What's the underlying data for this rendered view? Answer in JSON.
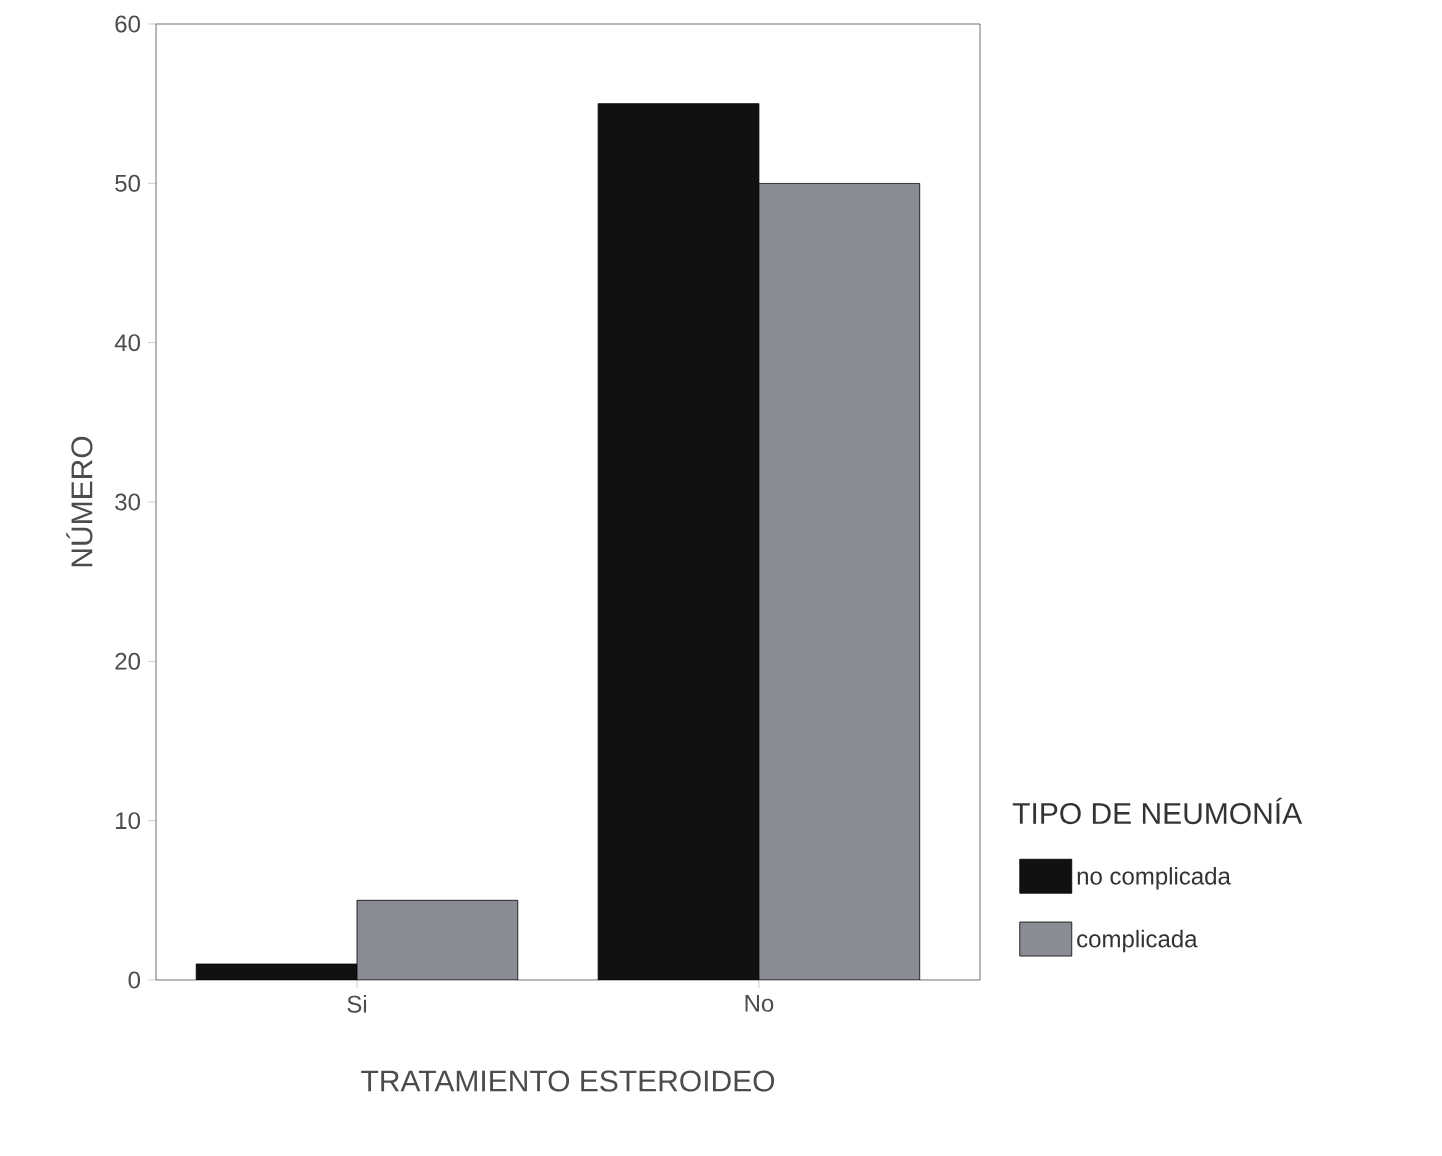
{
  "chart_data": {
    "type": "bar",
    "xlabel": "TRATAMIENTO ESTEROIDEO",
    "ylabel": "NÚMERO",
    "legend_title": "TIPO DE NEUMONÍA",
    "categories": [
      "Si",
      "No"
    ],
    "series": [
      {
        "name": "no complicada",
        "color": "#111111",
        "values": [
          1,
          55
        ]
      },
      {
        "name": "complicada",
        "color": "#8a8c94",
        "values": [
          5,
          50
        ]
      }
    ],
    "ylim": [
      0,
      60
    ],
    "yticks": [
      0,
      10,
      20,
      30,
      40,
      50,
      60
    ],
    "grid": false,
    "legend": "right"
  }
}
